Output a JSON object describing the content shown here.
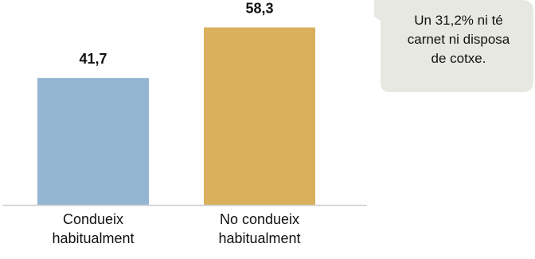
{
  "chart_data": {
    "type": "bar",
    "categories": [
      [
        "Condueix",
        "habitualment"
      ],
      [
        "No condueix",
        "habitualment"
      ]
    ],
    "values": [
      41.7,
      58.3
    ],
    "value_labels": [
      "41,7",
      "58,3"
    ],
    "colors": [
      "#94b6d2",
      "#d9b15e"
    ],
    "ylim": [
      0,
      66
    ],
    "grid": false,
    "title": "",
    "xlabel": "",
    "ylabel": ""
  },
  "callout": {
    "text": "Un 31,2% ni té\ncarnet ni disposa\nde cotxe.",
    "fill": "#e8e8e2"
  }
}
